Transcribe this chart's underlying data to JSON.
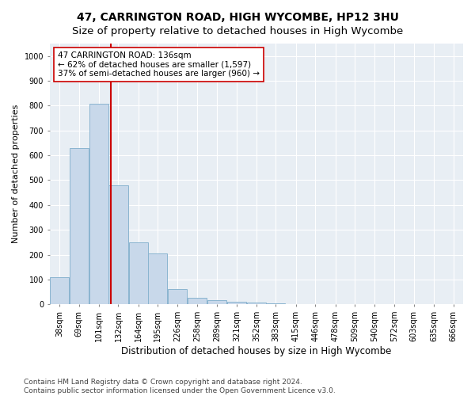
{
  "title": "47, CARRINGTON ROAD, HIGH WYCOMBE, HP12 3HU",
  "subtitle": "Size of property relative to detached houses in High Wycombe",
  "xlabel": "Distribution of detached houses by size in High Wycombe",
  "ylabel": "Number of detached properties",
  "bin_labels": [
    "38sqm",
    "69sqm",
    "101sqm",
    "132sqm",
    "164sqm",
    "195sqm",
    "226sqm",
    "258sqm",
    "289sqm",
    "321sqm",
    "352sqm",
    "383sqm",
    "415sqm",
    "446sqm",
    "478sqm",
    "509sqm",
    "540sqm",
    "572sqm",
    "603sqm",
    "635sqm",
    "666sqm"
  ],
  "bin_edges": [
    38,
    69,
    101,
    132,
    164,
    195,
    226,
    258,
    289,
    321,
    352,
    383,
    415,
    446,
    478,
    509,
    540,
    572,
    603,
    635,
    666
  ],
  "bar_heights": [
    110,
    630,
    808,
    480,
    250,
    205,
    60,
    25,
    18,
    12,
    8,
    4,
    2,
    1,
    1,
    0,
    0,
    0,
    0,
    0
  ],
  "bar_color": "#c8d8ea",
  "bar_edge_color": "#8ab4d0",
  "bar_linewidth": 0.7,
  "vline_x": 136,
  "vline_color": "#cc0000",
  "vline_linewidth": 1.5,
  "annotation_text": "47 CARRINGTON ROAD: 136sqm\n← 62% of detached houses are smaller (1,597)\n37% of semi-detached houses are larger (960) →",
  "annotation_box_color": "white",
  "annotation_box_edge_color": "#cc0000",
  "ylim": [
    0,
    1050
  ],
  "yticks": [
    0,
    100,
    200,
    300,
    400,
    500,
    600,
    700,
    800,
    900,
    1000
  ],
  "bg_color": "#ffffff",
  "axes_bg_color": "#e8eef4",
  "grid_color": "#ffffff",
  "footer_text": "Contains HM Land Registry data © Crown copyright and database right 2024.\nContains public sector information licensed under the Open Government Licence v3.0.",
  "title_fontsize": 10,
  "subtitle_fontsize": 9.5,
  "xlabel_fontsize": 8.5,
  "ylabel_fontsize": 8,
  "tick_fontsize": 7,
  "annotation_fontsize": 7.5,
  "footer_fontsize": 6.5
}
